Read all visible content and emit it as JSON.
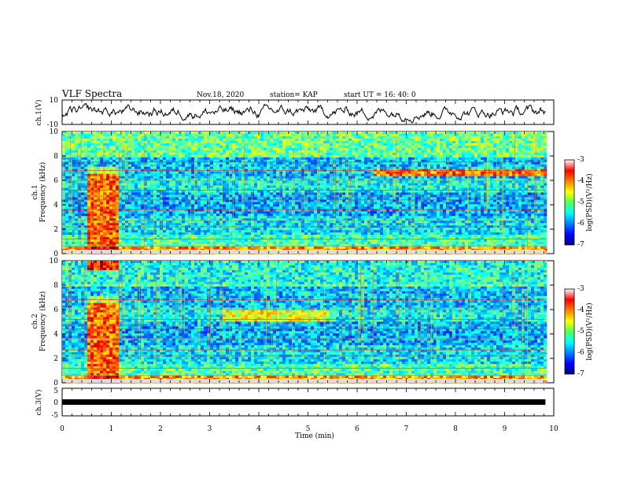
{
  "header": {
    "title": "VLF Spectra",
    "date": "Nov.18, 2020",
    "station": "station= KAP",
    "start": "start  UT =   16: 40: 0"
  },
  "chart_data": [
    {
      "type": "line",
      "panel": "ch1-waveform",
      "ylabel": "ch.1(V)",
      "ylim": [
        -10,
        10
      ],
      "yticks": [
        "10",
        "-10"
      ],
      "x_range_min": [
        0,
        9.83
      ],
      "description_free": true,
      "trace_color": "#000000"
    },
    {
      "type": "heatmap",
      "panel": "ch1-spectrogram",
      "ylabel_top": "ch.1",
      "ylabel": "Frequency (kHz)",
      "ylim": [
        0,
        10
      ],
      "yticks": [
        "0",
        "2",
        "4",
        "6",
        "8",
        "10"
      ],
      "x_range_min": [
        0,
        9.83
      ],
      "colorbar": {
        "label": "log(PSD)(V²/Hz)",
        "range": [
          -7,
          -3
        ],
        "ticks": [
          "-3",
          "-4",
          "-5",
          "-6",
          "-7"
        ]
      }
    },
    {
      "type": "heatmap",
      "panel": "ch2-spectrogram",
      "ylabel_top": "ch.2",
      "ylabel": "Frequency (kHz)",
      "ylim": [
        0,
        10
      ],
      "yticks": [
        "0",
        "2",
        "4",
        "6",
        "8",
        "10"
      ],
      "x_range_min": [
        0,
        9.83
      ],
      "colorbar": {
        "label": "log(PSD)(V²/Hz)",
        "range": [
          -7,
          -3
        ],
        "ticks": [
          "-3",
          "-4",
          "-5",
          "-6",
          "-7"
        ]
      }
    },
    {
      "type": "line",
      "panel": "ch3-waveform",
      "ylabel": "ch.3(V)",
      "ylim": [
        -5,
        5
      ],
      "yticks": [
        "5",
        "0",
        "-5"
      ],
      "x_range_min": [
        0,
        9.83
      ],
      "trace_color": "#000000"
    }
  ],
  "xaxis": {
    "label": "Time (min)",
    "ticks": [
      "0",
      "1",
      "2",
      "3",
      "4",
      "5",
      "6",
      "7",
      "8",
      "9",
      "10"
    ],
    "range": [
      0,
      10
    ]
  }
}
